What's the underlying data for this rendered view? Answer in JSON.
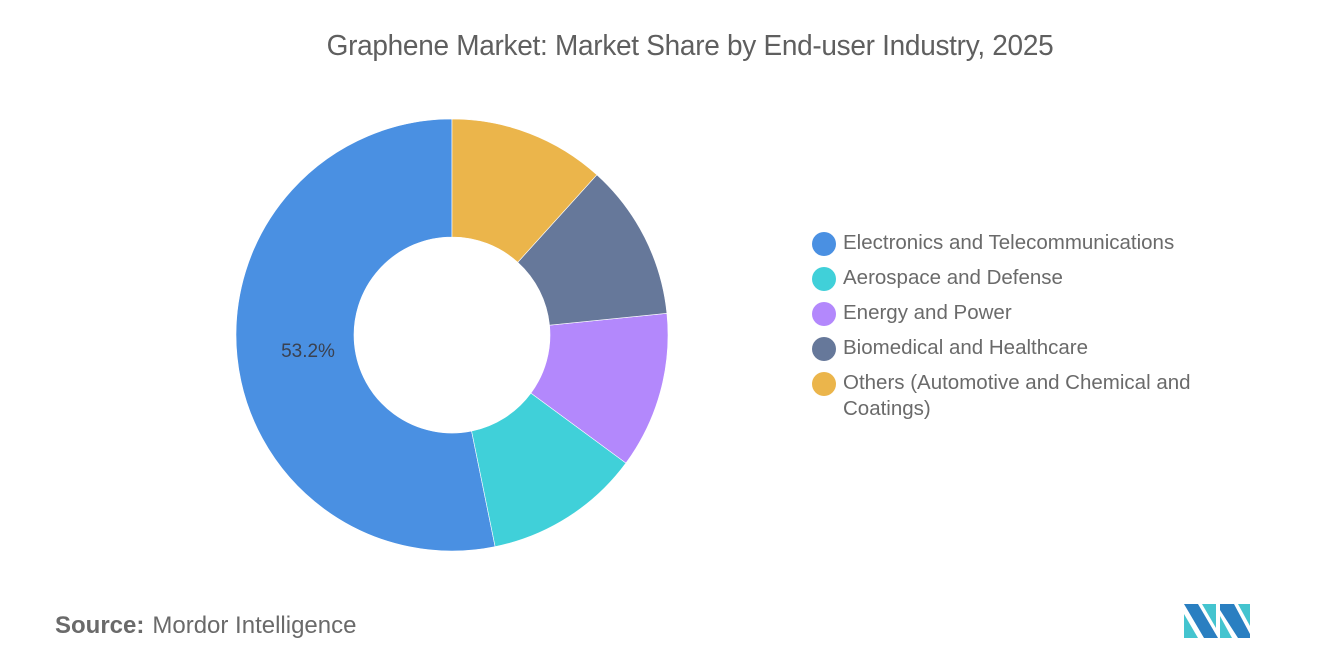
{
  "title": "Graphene Market: Market Share by End-user Industry, 2025",
  "chart_data": {
    "type": "pie",
    "subtype": "donut",
    "title": "Graphene Market: Market Share by End-user Industry, 2025",
    "categories": [
      "Electronics and Telecommunications",
      "Aerospace and Defense",
      "Energy and Power",
      "Biomedical and Healthcare",
      "Others (Automotive and Chemical and Coatings)"
    ],
    "values": [
      53.2,
      11.7,
      11.7,
      11.7,
      11.7
    ],
    "units": "%",
    "colors": [
      "#4a90e2",
      "#40d0d9",
      "#b388fc",
      "#66789a",
      "#ebb54b"
    ],
    "data_labels": [
      {
        "category": "Electronics and Telecommunications",
        "text": "53.2%"
      }
    ],
    "start_angle_deg": 0,
    "direction": "counterclockwise-from-top (largest slice on left)",
    "legend_position": "right"
  },
  "legend": {
    "items": [
      {
        "label": "Electronics and Telecommunications",
        "color": "#4a90e2"
      },
      {
        "label": "Aerospace and Defense",
        "color": "#40d0d9"
      },
      {
        "label": "Energy and Power",
        "color": "#b388fc"
      },
      {
        "label": "Biomedical and Healthcare",
        "color": "#66789a"
      },
      {
        "label": "Others (Automotive and Chemical and Coatings)",
        "color": "#ebb54b"
      }
    ]
  },
  "slice_label": "53.2%",
  "footer": {
    "source_key": "Source:",
    "source_value": "Mordor Intelligence"
  },
  "logo": {
    "name": "mordor-intelligence-logo",
    "colors": [
      "#2a7fc1",
      "#44c4cf"
    ]
  }
}
